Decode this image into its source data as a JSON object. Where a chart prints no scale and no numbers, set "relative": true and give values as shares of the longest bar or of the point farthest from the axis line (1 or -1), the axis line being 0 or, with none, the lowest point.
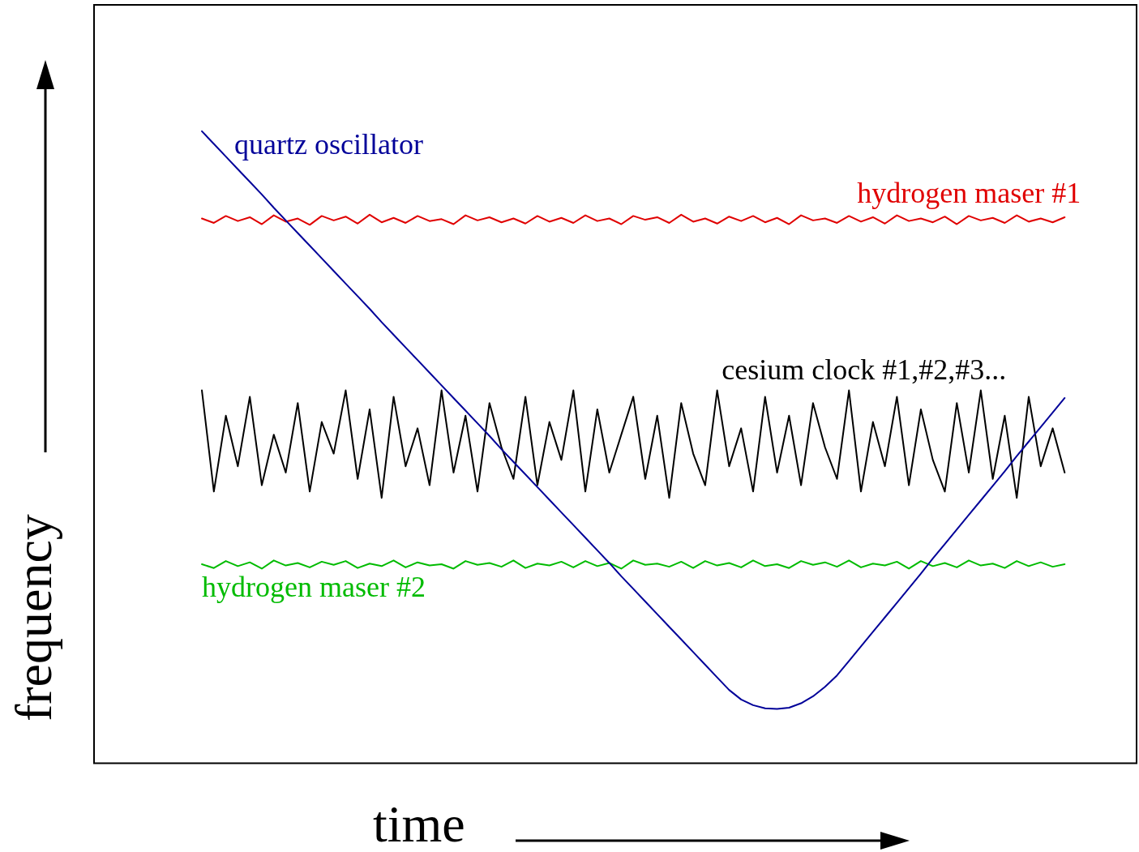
{
  "chart_data": {
    "type": "line",
    "relative": true,
    "xlabel": "time",
    "ylabel": "frequency",
    "grid": false,
    "legend": false,
    "marker": "none",
    "line_style": "solid",
    "categories": [
      null,
      null,
      null,
      null,
      null,
      null,
      null,
      null,
      null,
      null,
      null,
      null,
      null,
      null,
      null,
      null,
      null,
      null,
      null,
      null,
      null,
      null,
      null,
      null,
      null,
      null,
      null,
      null,
      null,
      null,
      null,
      null,
      null,
      null,
      null,
      null,
      null,
      null,
      null,
      null,
      null,
      null,
      null,
      null,
      null,
      null,
      null,
      null,
      null,
      null,
      null,
      null,
      null,
      null,
      null,
      null,
      null,
      null,
      null,
      null,
      null,
      null,
      null,
      null,
      null,
      null,
      null,
      null,
      null,
      null,
      null,
      null,
      null,
      null,
      null,
      null,
      null,
      null,
      null,
      null,
      null,
      null,
      null,
      null,
      null,
      null,
      null,
      null
    ],
    "series": [
      {
        "name": "quartz oscillator",
        "color": "#000099",
        "values": [
          null,
          null,
          null,
          null,
          null,
          null,
          null,
          null,
          null,
          1.0,
          0.98,
          0.96,
          0.94,
          0.92,
          0.9,
          0.879,
          0.859,
          0.839,
          0.819,
          0.799,
          0.779,
          0.759,
          0.739,
          0.719,
          0.698,
          0.678,
          0.658,
          0.638,
          0.618,
          0.598,
          0.578,
          0.558,
          0.538,
          0.518,
          0.497,
          0.477,
          0.457,
          0.437,
          0.417,
          0.397,
          0.377,
          0.357,
          0.337,
          0.317,
          0.296,
          0.276,
          0.256,
          0.236,
          0.216,
          0.196,
          0.176,
          0.156,
          0.136,
          0.116,
          0.101,
          0.092,
          0.087,
          0.086,
          0.088,
          0.095,
          0.106,
          0.121,
          0.139,
          0.162,
          0.185,
          0.208,
          0.231,
          0.254,
          0.277,
          0.3,
          0.324,
          0.347,
          0.37,
          0.393,
          0.416,
          0.439,
          0.462,
          0.486,
          0.509,
          0.532,
          0.555,
          0.578,
          null,
          null,
          null,
          null,
          null,
          null
        ]
      },
      {
        "name": "hydrogen maser #1",
        "color": "#e00000",
        "values": [
          null,
          null,
          null,
          null,
          null,
          null,
          null,
          null,
          null,
          0.862,
          0.855,
          0.866,
          0.858,
          0.864,
          0.853,
          0.867,
          0.857,
          0.862,
          0.852,
          0.866,
          0.859,
          0.865,
          0.854,
          0.868,
          0.856,
          0.863,
          0.855,
          0.866,
          0.858,
          0.861,
          0.853,
          0.867,
          0.859,
          0.864,
          0.856,
          0.862,
          0.854,
          0.866,
          0.857,
          0.863,
          0.855,
          0.867,
          0.858,
          0.862,
          0.853,
          0.866,
          0.86,
          0.864,
          0.855,
          0.868,
          0.857,
          0.862,
          0.854,
          0.865,
          0.858,
          0.866,
          0.856,
          0.863,
          0.853,
          0.867,
          0.859,
          0.862,
          0.855,
          0.866,
          0.857,
          0.864,
          0.854,
          0.867,
          0.858,
          0.862,
          0.856,
          0.865,
          0.853,
          0.866,
          0.859,
          0.863,
          0.855,
          0.867,
          0.857,
          0.862,
          0.856,
          0.864,
          null,
          null,
          null,
          null,
          null,
          null
        ]
      },
      {
        "name": "cesium clock #1,#2,#3...",
        "color": "#000000",
        "values": [
          null,
          null,
          null,
          null,
          null,
          null,
          null,
          null,
          null,
          0.59,
          0.43,
          0.55,
          0.47,
          0.58,
          0.44,
          0.52,
          0.46,
          0.57,
          0.43,
          0.54,
          0.49,
          0.59,
          0.45,
          0.56,
          0.42,
          0.58,
          0.47,
          0.53,
          0.44,
          0.59,
          0.46,
          0.55,
          0.43,
          0.57,
          0.5,
          0.45,
          0.58,
          0.44,
          0.54,
          0.48,
          0.59,
          0.43,
          0.56,
          0.46,
          0.52,
          0.58,
          0.45,
          0.55,
          0.42,
          0.57,
          0.49,
          0.44,
          0.59,
          0.47,
          0.53,
          0.43,
          0.58,
          0.46,
          0.55,
          0.44,
          0.57,
          0.5,
          0.45,
          0.59,
          0.43,
          0.54,
          0.47,
          0.58,
          0.44,
          0.56,
          0.48,
          0.43,
          0.57,
          0.46,
          0.59,
          0.45,
          0.55,
          0.42,
          0.58,
          0.47,
          0.53,
          0.46,
          null,
          null,
          null,
          null,
          null,
          null
        ]
      },
      {
        "name": "hydrogen maser #2",
        "color": "#00bb00",
        "values": [
          null,
          null,
          null,
          null,
          null,
          null,
          null,
          null,
          null,
          0.315,
          0.309,
          0.32,
          0.312,
          0.318,
          0.308,
          0.321,
          0.313,
          0.317,
          0.31,
          0.319,
          0.314,
          0.32,
          0.309,
          0.316,
          0.312,
          0.321,
          0.31,
          0.318,
          0.313,
          0.315,
          0.308,
          0.32,
          0.314,
          0.317,
          0.311,
          0.321,
          0.309,
          0.316,
          0.313,
          0.319,
          0.31,
          0.32,
          0.312,
          0.317,
          0.308,
          0.321,
          0.314,
          0.316,
          0.311,
          0.319,
          0.309,
          0.32,
          0.313,
          0.317,
          0.31,
          0.321,
          0.312,
          0.315,
          0.309,
          0.32,
          0.314,
          0.318,
          0.311,
          0.321,
          0.31,
          0.316,
          0.313,
          0.319,
          0.308,
          0.32,
          0.312,
          0.317,
          0.31,
          0.321,
          0.313,
          0.316,
          0.309,
          0.32,
          0.312,
          0.318,
          0.311,
          0.315,
          null,
          null,
          null,
          null,
          null,
          null
        ]
      }
    ]
  }
}
